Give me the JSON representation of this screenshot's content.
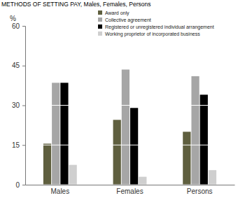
{
  "chart_data": {
    "type": "bar",
    "title": "METHODS OF SETTING PAY, Males, Females, Persons",
    "y_label": "%",
    "categories": [
      "Males",
      "Females",
      "Persons"
    ],
    "series": [
      {
        "name": "Award only",
        "color": "#5f5f3f",
        "values": [
          15.5,
          24.5,
          20
        ]
      },
      {
        "name": "Collective agreement",
        "color": "#a6a6a6",
        "values": [
          38.5,
          43.5,
          41
        ]
      },
      {
        "name": "Registered or unregistered individual arrangement",
        "color": "#000000",
        "values": [
          38.5,
          29,
          34
        ]
      },
      {
        "name": "Working proprietor of incorporated business",
        "color": "#cfcfcf",
        "values": [
          7.5,
          3,
          5.5
        ]
      }
    ],
    "ylim": [
      0,
      60
    ],
    "yticks": [
      0,
      15,
      30,
      45,
      60
    ],
    "grid": true,
    "legend": "top"
  }
}
